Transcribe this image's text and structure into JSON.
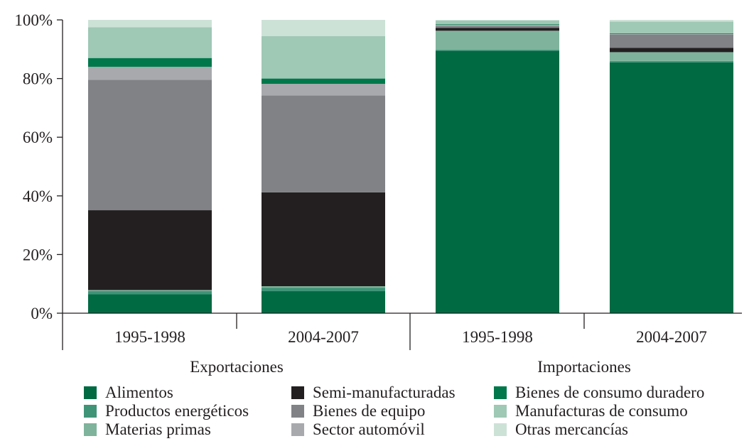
{
  "chart_data": {
    "type": "bar",
    "stacked": true,
    "title": "",
    "xlabel": "",
    "ylabel": "",
    "ylim": [
      0,
      100
    ],
    "y_ticks": [
      "0%",
      "20%",
      "40%",
      "60%",
      "80%",
      "100%"
    ],
    "y_tick_values": [
      0,
      20,
      40,
      60,
      80,
      100
    ],
    "groups": [
      {
        "label": "Exportaciones",
        "categories": [
          "1995-1998",
          "2004-2007"
        ]
      },
      {
        "label": "Importaciones",
        "categories": [
          "1995-1998",
          "2004-2007"
        ]
      }
    ],
    "categories": [
      "1995-1998",
      "2004-2007",
      "1995-1998",
      "2004-2007"
    ],
    "series": [
      {
        "name": "Alimentos",
        "color": "#006a43",
        "values": [
          6.5,
          7.5,
          89.5,
          85.5
        ]
      },
      {
        "name": "Productos energéticos",
        "color": "#3f9478",
        "values": [
          1.0,
          1.2,
          0.3,
          0.5
        ]
      },
      {
        "name": "Materias primas",
        "color": "#7fb39c",
        "values": [
          0.4,
          0.5,
          6.5,
          3.0
        ]
      },
      {
        "name": "Semi-manufacturadas",
        "color": "#231f20",
        "values": [
          27.2,
          32.0,
          1.0,
          1.5
        ]
      },
      {
        "name": "Bienes de equipo",
        "color": "#808285",
        "values": [
          44.5,
          33.0,
          0.7,
          4.5
        ]
      },
      {
        "name": "Sector automóvil",
        "color": "#a7a9ac",
        "values": [
          4.4,
          4.0,
          0.3,
          0.2
        ]
      },
      {
        "name": "Bienes de consumo duradero",
        "color": "#00784b",
        "values": [
          3.0,
          1.8,
          0.2,
          0.2
        ]
      },
      {
        "name": "Manufacturas de consumo",
        "color": "#9fc8b5",
        "values": [
          10.5,
          14.5,
          1.3,
          4.0
        ]
      },
      {
        "name": "Otras mercancías",
        "color": "#cde2d7",
        "values": [
          2.5,
          5.5,
          0.2,
          0.6
        ]
      }
    ],
    "legend": {
      "placement": "bottom",
      "columns": 3,
      "order": [
        "Alimentos",
        "Semi-manufacturadas",
        "Bienes de consumo duradero",
        "Productos energéticos",
        "Bienes de equipo",
        "Manufacturas de consumo",
        "Materias primas",
        "Sector automóvil",
        "Otras mercancías"
      ]
    },
    "grid": false
  }
}
